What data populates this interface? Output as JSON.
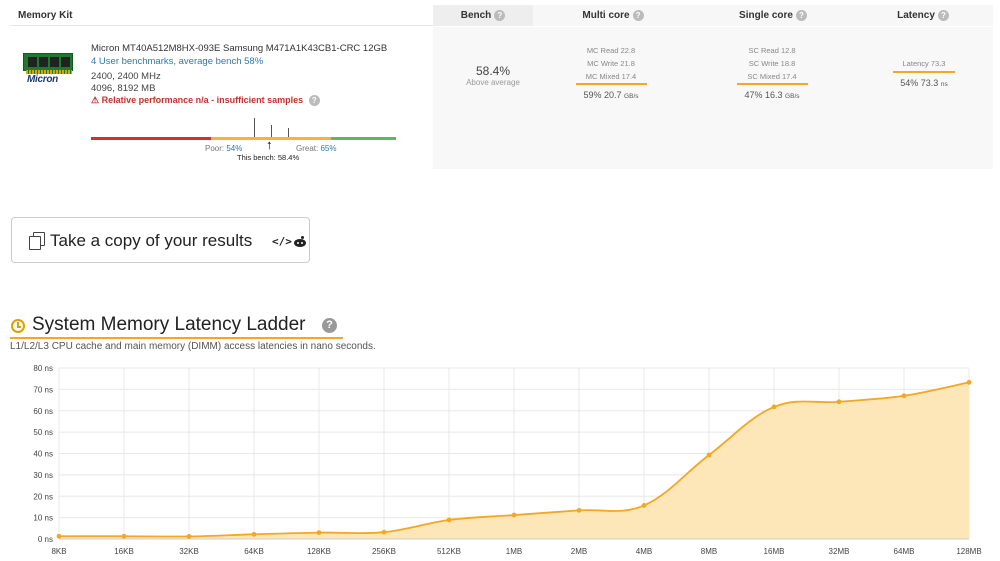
{
  "table": {
    "headers": {
      "kit": "Memory Kit",
      "bench": "Bench",
      "multi": "Multi core",
      "single": "Single core",
      "latency": "Latency"
    }
  },
  "kit": {
    "brand_logo": "Micron",
    "name": "Micron MT40A512M8HX-093E Samsung M471A1K43CB1-CRC 12GB",
    "benchmarks_link": "4 User benchmarks, average bench 58%",
    "speed": "2400, 2400 MHz",
    "size": "4096, 8192 MB",
    "warning": "Relative performance n/a - insufficient samples",
    "perf": {
      "poor_label": "Poor:",
      "poor_value": "54%",
      "great_label": "Great:",
      "great_value": "65%",
      "this_bench": "This bench: 58.4%",
      "this_bench_value": 58.4
    }
  },
  "bench": {
    "value": "58.4%",
    "subtitle": "Above average"
  },
  "multi": {
    "read": "MC Read 22.8",
    "write": "MC Write 21.8",
    "mixed": "MC Mixed 17.4",
    "summary": "59% 20.7",
    "unit": "GB/s"
  },
  "single": {
    "read": "SC Read 12.8",
    "write": "SC Write 18.8",
    "mixed": "SC Mixed 17.4",
    "summary": "47% 16.3",
    "unit": "GB/s"
  },
  "latency": {
    "value": "Latency 73.3",
    "summary": "54% 73.3",
    "unit": "ns"
  },
  "copy_button": {
    "label": "Take a copy of your results",
    "code_icon": "</>",
    "reddit_icon": "reddit-icon"
  },
  "section": {
    "title": "System Memory Latency Ladder",
    "help": "?",
    "description": "L1/L2/L3 CPU cache and main memory (DIMM) access latencies in nano seconds."
  },
  "colors": {
    "accent": "#f5a623",
    "area_fill": "#fde7b8",
    "line": "#f5a623",
    "poor": "#d32f2f",
    "great": "#5cb85c",
    "link": "#2a7ab0"
  },
  "chart_data": {
    "type": "area",
    "categories": [
      "8KB",
      "16KB",
      "32KB",
      "64KB",
      "128KB",
      "256KB",
      "512KB",
      "1MB",
      "2MB",
      "4MB",
      "8MB",
      "16MB",
      "32MB",
      "64MB",
      "128MB"
    ],
    "series": [
      {
        "values": [
          1.3,
          1.3,
          1.2,
          2.2,
          3.0,
          3.2,
          8.9,
          11.2,
          13.4,
          15.7,
          39.3,
          61.8,
          64.2,
          67.0,
          73.3
        ]
      }
    ],
    "y_ticks": [
      "0 ns",
      "10 ns",
      "20 ns",
      "30 ns",
      "40 ns",
      "50 ns",
      "60 ns",
      "70 ns",
      "80 ns"
    ],
    "ylim": [
      0,
      80
    ],
    "grid": true
  }
}
